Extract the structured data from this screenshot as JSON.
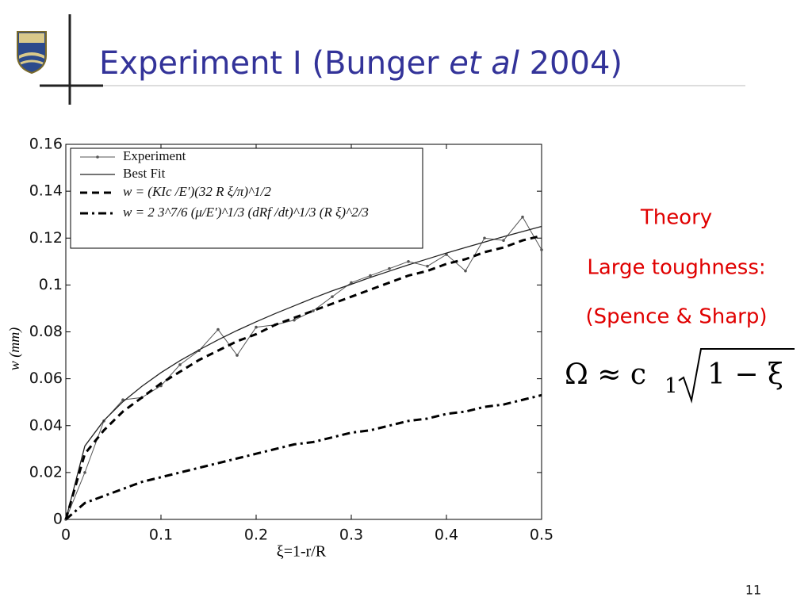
{
  "slide": {
    "title_parts": [
      "Experiment I (Bunger ",
      "et al",
      " 2004)"
    ],
    "notes": [
      "Theory",
      "Large toughness:",
      "(Spence & Sharp)"
    ],
    "formula": {
      "lhs": "Ω ≈ c",
      "subscript": "1",
      "radicand": "1 − ξ"
    },
    "page_number": "11"
  },
  "chart_data": {
    "type": "line",
    "xlabel": "ξ=1-r/R",
    "ylabel": "w (mm)",
    "xlim": [
      0,
      0.5
    ],
    "ylim": [
      0,
      0.16
    ],
    "xticks": [
      0,
      0.1,
      0.2,
      0.3,
      0.4,
      0.5
    ],
    "yticks": [
      0,
      0.02,
      0.04,
      0.06,
      0.08,
      0.1,
      0.12,
      0.14,
      0.16
    ],
    "legend": "upper left",
    "x": [
      0,
      0.02,
      0.04,
      0.06,
      0.08,
      0.1,
      0.12,
      0.14,
      0.16,
      0.18,
      0.2,
      0.22,
      0.24,
      0.26,
      0.28,
      0.3,
      0.32,
      0.34,
      0.36,
      0.38,
      0.4,
      0.42,
      0.44,
      0.46,
      0.48,
      0.5
    ],
    "series": [
      {
        "name": "Experiment",
        "color": "#555555",
        "style": "solid-markers",
        "values": [
          0,
          0.02,
          0.042,
          0.051,
          0.052,
          0.057,
          0.066,
          0.072,
          0.081,
          0.07,
          0.082,
          0.083,
          0.085,
          0.089,
          0.095,
          0.101,
          0.104,
          0.107,
          0.11,
          0.108,
          0.113,
          0.106,
          0.12,
          0.119,
          0.129,
          0.115
        ]
      },
      {
        "name": "Best Fit",
        "color": "#222222",
        "style": "solid",
        "values": [
          0,
          0.0313,
          0.0422,
          0.0502,
          0.0568,
          0.0626,
          0.0677,
          0.0723,
          0.0766,
          0.0806,
          0.0843,
          0.0878,
          0.0911,
          0.0944,
          0.0975,
          0.1003,
          0.1032,
          0.1059,
          0.1086,
          0.1111,
          0.1136,
          0.116,
          0.1183,
          0.1206,
          0.1228,
          0.125
        ]
      },
      {
        "name": "w = (KIc /E′)(32 R ξ/π)^1/2",
        "color": "#000000",
        "style": "dashed",
        "values": [
          0,
          0.028,
          0.038,
          0.046,
          0.052,
          0.058,
          0.063,
          0.068,
          0.072,
          0.076,
          0.079,
          0.083,
          0.086,
          0.089,
          0.092,
          0.095,
          0.098,
          0.101,
          0.104,
          0.106,
          0.109,
          0.111,
          0.114,
          0.116,
          0.119,
          0.121
        ]
      },
      {
        "name": "w = 2 3^7/6 (μ/E′)^1/3 (dRf /dt)^1/3 (R ξ)^2/3",
        "color": "#000000",
        "style": "dashdot",
        "values": [
          0,
          0.007,
          0.01,
          0.013,
          0.016,
          0.018,
          0.02,
          0.022,
          0.024,
          0.026,
          0.028,
          0.03,
          0.032,
          0.033,
          0.035,
          0.037,
          0.038,
          0.04,
          0.042,
          0.043,
          0.045,
          0.046,
          0.048,
          0.049,
          0.051,
          0.053
        ]
      }
    ]
  }
}
